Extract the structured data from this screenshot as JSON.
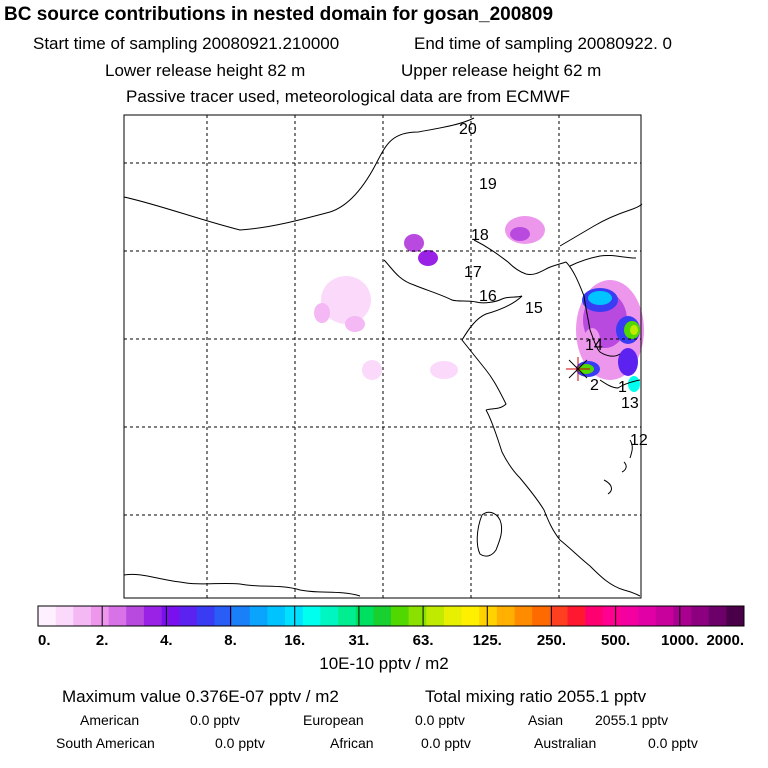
{
  "header": {
    "title": "BC  source contributions in nested domain for gosan_200809",
    "start": "Start time of sampling 20080921.210000",
    "end": "End time of sampling 20080922.     0",
    "lower": "Lower release height   82 m",
    "upper": "Upper release height   62 m",
    "note": "Passive tracer used, meteorological data are from ECMWF"
  },
  "chart_data": {
    "type": "heatmap",
    "title": "BC  source contributions in nested domain for gosan_200809",
    "colorbar": {
      "tick_labels": [
        "0.",
        "2.",
        "4.",
        "8.",
        "16.",
        "31.",
        "63.",
        "125.",
        "250.",
        "500.",
        "1000.",
        "2000."
      ],
      "colors": [
        "#fff0ff",
        "#fbd9fb",
        "#f4b8f4",
        "#ec97ec",
        "#d772e8",
        "#b84ae0",
        "#9a22e6",
        "#7a10ee",
        "#5b22f0",
        "#3a3cf4",
        "#2a5cf6",
        "#1a80fa",
        "#0aa4fc",
        "#00c4ff",
        "#00e0ff",
        "#00ffee",
        "#00f6c0",
        "#00ee90",
        "#00e060",
        "#18d030",
        "#50d800",
        "#8ae000",
        "#c0ea00",
        "#e6f000",
        "#fff000",
        "#ffd200",
        "#ffb000",
        "#ff8c00",
        "#ff6a00",
        "#ff4020",
        "#ff1830",
        "#ff0070",
        "#ff0090",
        "#f400a0",
        "#e000a6",
        "#c8009c",
        "#aa0090",
        "#8c0080",
        "#6c0068",
        "#4a0048"
      ],
      "unit": "10E-10 pptv / m2"
    },
    "trajectory_labels": [
      "20",
      "19",
      "18",
      "17",
      "16",
      "15",
      "14",
      "2",
      "1",
      "13",
      "12"
    ],
    "receptor": "gosan",
    "grid": true
  },
  "stats": {
    "max": "Maximum value  0.376E-07 pptv / m2",
    "total": "Total mixing ratio     2055.1 pptv",
    "regions": [
      {
        "label": "American",
        "value": "0.0 pptv"
      },
      {
        "label": "European",
        "value": "0.0 pptv"
      },
      {
        "label": "Asian",
        "value": "2055.1 pptv"
      },
      {
        "label": "South American",
        "value": "0.0 pptv"
      },
      {
        "label": "African",
        "value": "0.0 pptv"
      },
      {
        "label": "Australian",
        "value": "0.0 pptv"
      }
    ]
  }
}
